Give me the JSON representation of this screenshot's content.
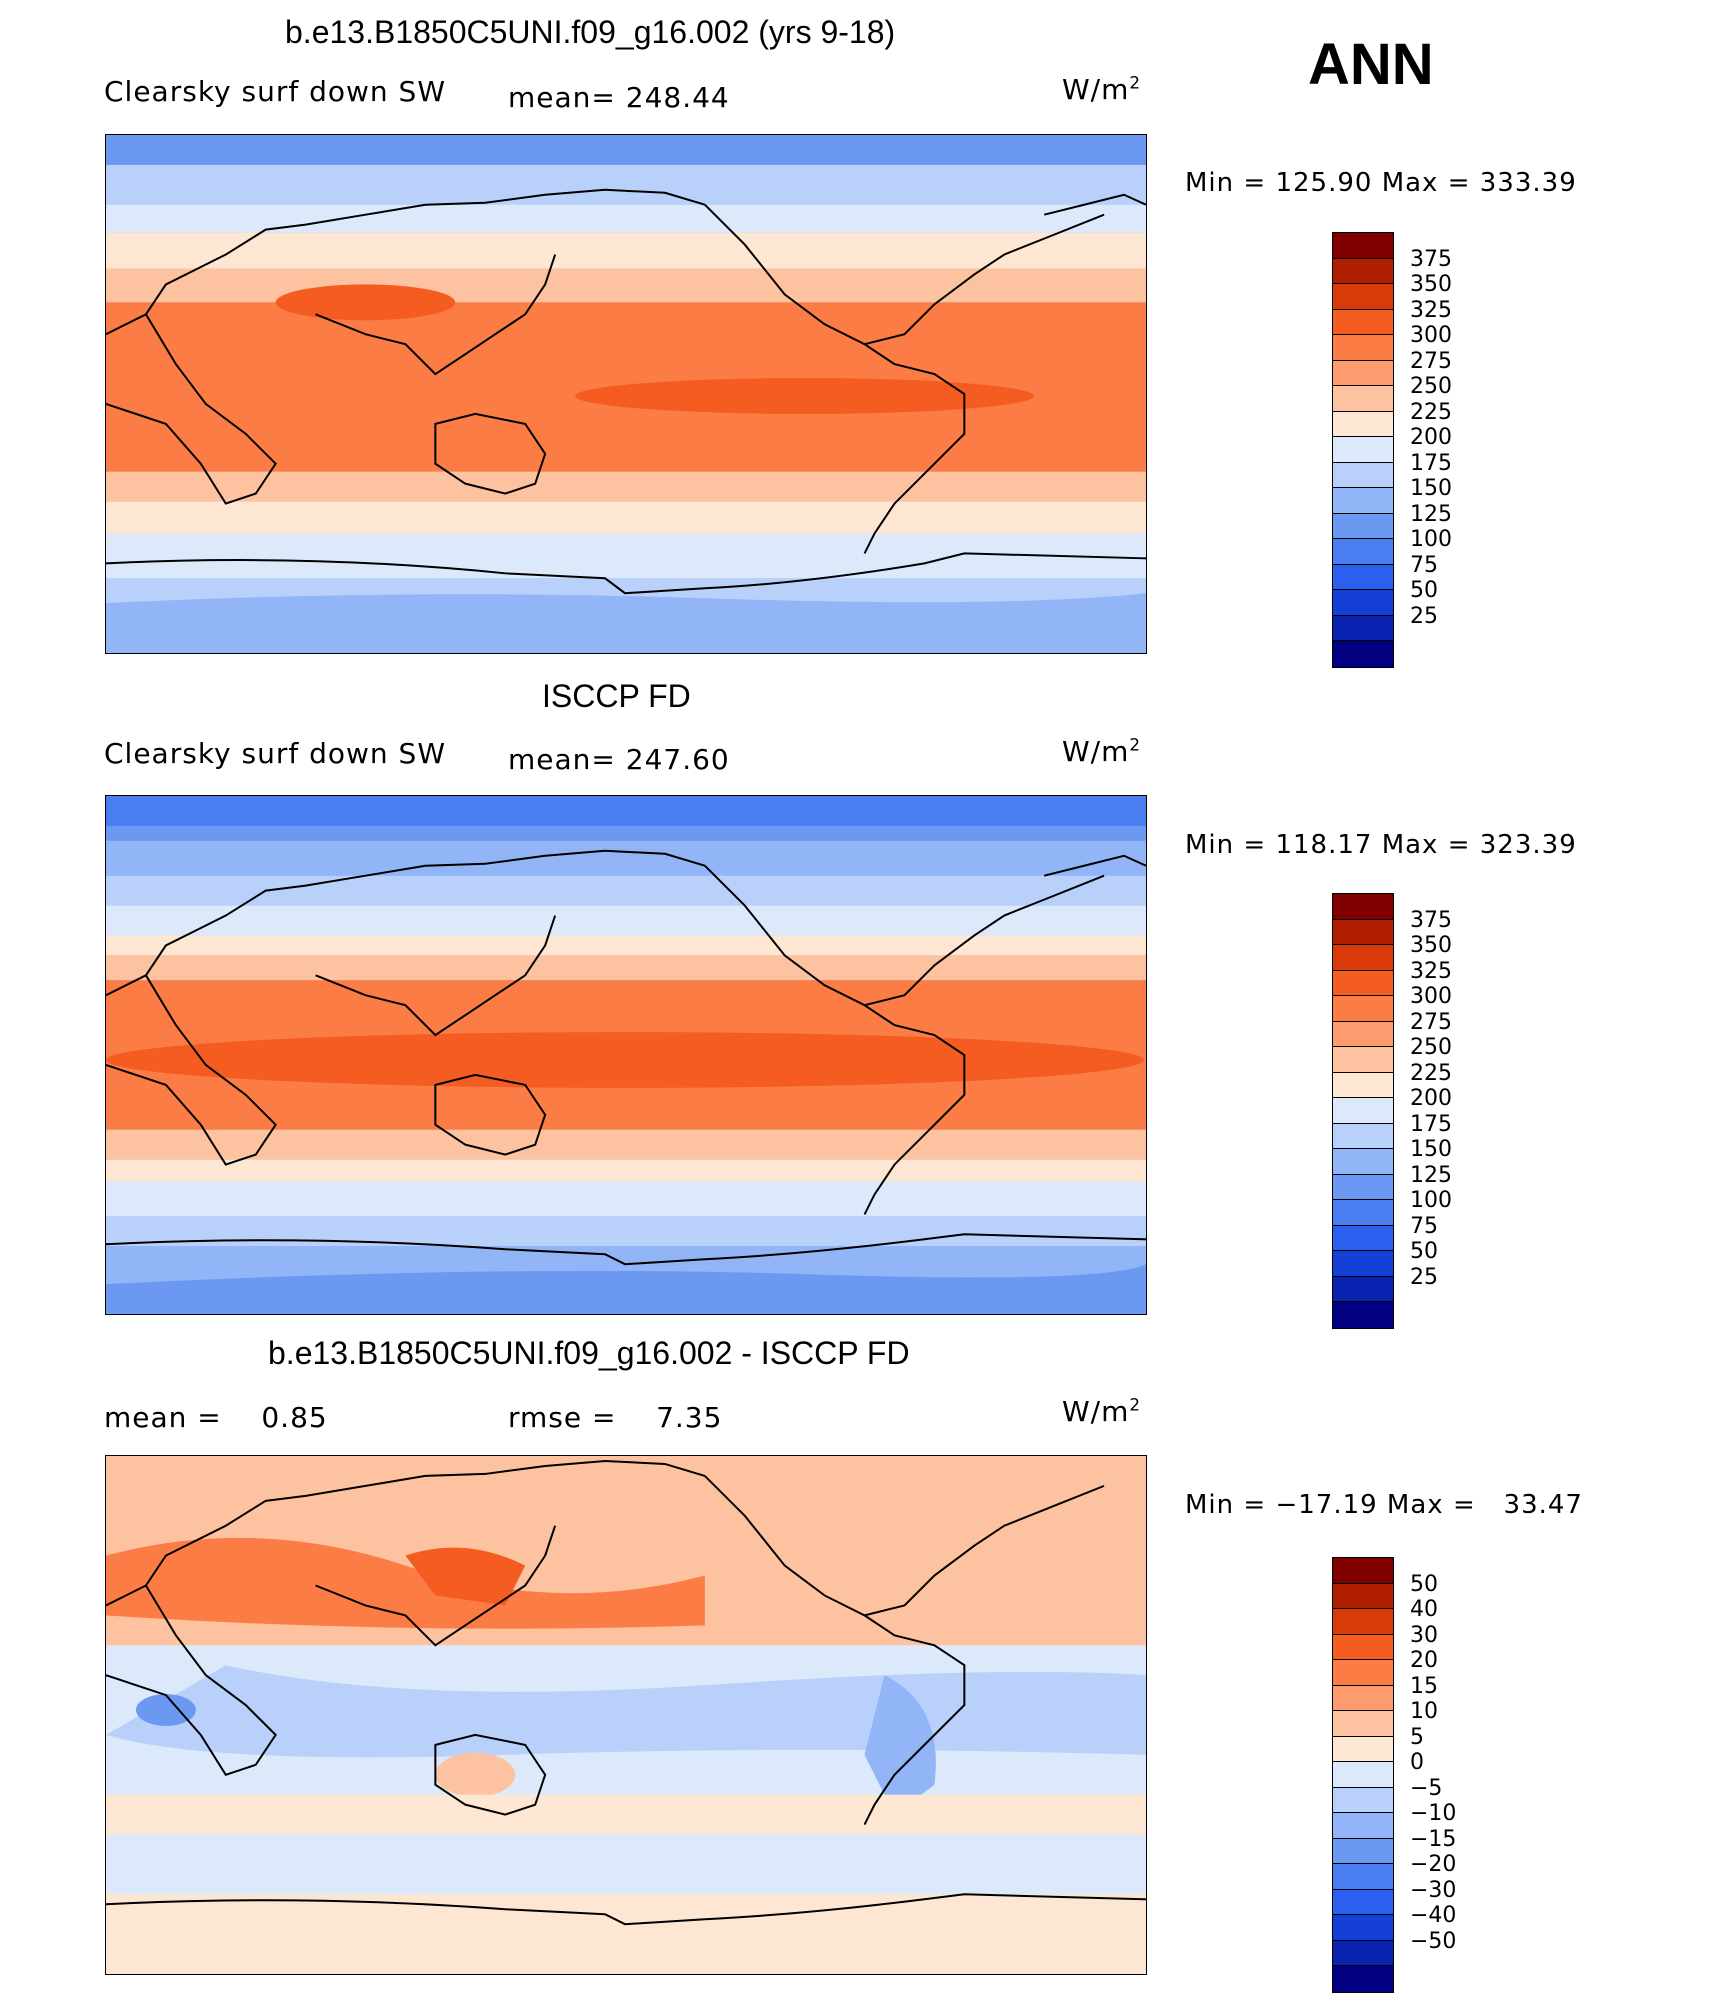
{
  "season": "ANN",
  "unit_base": "W/m",
  "unit_exp": "2",
  "panels": [
    {
      "title": "b.e13.B1850C5UNI.f09_g16.002 (yrs 9-18)",
      "left_label": "Clearsky surf down SW",
      "mid_label": "mean= 248.44",
      "minmax": "Min = 125.90 Max = 333.39",
      "levels": [
        "375",
        "350",
        "325",
        "300",
        "275",
        "250",
        "225",
        "200",
        "175",
        "150",
        "125",
        "100",
        "75",
        "50",
        "25"
      ]
    },
    {
      "title": "ISCCP FD",
      "left_label": "Clearsky surf down SW",
      "mid_label": "mean= 247.60",
      "minmax": "Min = 118.17 Max = 323.39",
      "levels": [
        "375",
        "350",
        "325",
        "300",
        "275",
        "250",
        "225",
        "200",
        "175",
        "150",
        "125",
        "100",
        "75",
        "50",
        "25"
      ]
    },
    {
      "title": "b.e13.B1850C5UNI.f09_g16.002 - ISCCP FD",
      "left_label": "mean =    0.85",
      "mid_label": "rmse =    7.35",
      "minmax": "Min = −17.19 Max =   33.47",
      "levels": [
        "50",
        "40",
        "30",
        "20",
        "15",
        "10",
        "5",
        "0",
        "−5",
        "−10",
        "−15",
        "−20",
        "−30",
        "−40",
        "−50"
      ]
    }
  ],
  "colorbar_colors": [
    "#800000",
    "#b01e00",
    "#d93a0a",
    "#f45c22",
    "#fb7c45",
    "#fc9c6e",
    "#fdc2a0",
    "#fde6d2",
    "#dce9fb",
    "#b9d1fa",
    "#92b5f7",
    "#6b99f2",
    "#4a7df0",
    "#2a5ff0",
    "#1440d8",
    "#0a22b0",
    "#000080"
  ],
  "chart_data": [
    {
      "type": "heatmap",
      "title": "b.e13.B1850C5UNI.f09_g16.002 (yrs 9-18)",
      "variable": "Clearsky surf down SW",
      "units": "W/m2",
      "mean": 248.44,
      "min": 125.9,
      "max": 333.39,
      "contour_levels": [
        25,
        50,
        75,
        100,
        125,
        150,
        175,
        200,
        225,
        250,
        275,
        300,
        325,
        350,
        375
      ]
    },
    {
      "type": "heatmap",
      "title": "ISCCP FD",
      "variable": "Clearsky surf down SW",
      "units": "W/m2",
      "mean": 247.6,
      "min": 118.17,
      "max": 323.39,
      "contour_levels": [
        25,
        50,
        75,
        100,
        125,
        150,
        175,
        200,
        225,
        250,
        275,
        300,
        325,
        350,
        375
      ]
    },
    {
      "type": "heatmap",
      "title": "b.e13.B1850C5UNI.f09_g16.002 - ISCCP FD",
      "units": "W/m2",
      "mean": 0.85,
      "rmse": 7.35,
      "min": -17.19,
      "max": 33.47,
      "contour_levels": [
        -50,
        -40,
        -30,
        -20,
        -15,
        -10,
        -5,
        0,
        5,
        10,
        15,
        20,
        30,
        40,
        50
      ]
    }
  ]
}
